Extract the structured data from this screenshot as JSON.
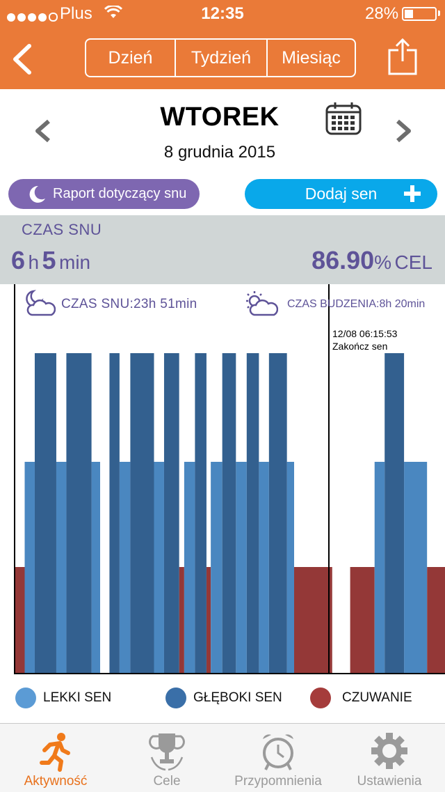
{
  "status_bar": {
    "carrier": "Plus",
    "time": "12:35",
    "battery": "28%",
    "battery_level": 0.28
  },
  "header": {
    "tabs": [
      {
        "label": "Dzień",
        "active": true
      },
      {
        "label": "Tydzień",
        "active": false
      },
      {
        "label": "Miesiąc",
        "active": false
      }
    ],
    "back_icon": "chevron-left-icon",
    "share_icon": "share-icon",
    "accent_color": "#EA7A38"
  },
  "date_nav": {
    "day": "WTOREK",
    "date": "8 grudnia 2015"
  },
  "actions": {
    "report_label": "Raport dotyczący snu",
    "add_sleep_label": "Dodaj sen"
  },
  "summary": {
    "label": "CZAS SNU",
    "hours": "6",
    "hours_unit": "h",
    "minutes": "5",
    "minutes_unit": "min",
    "percent": "86.90",
    "percent_suffix": "%",
    "goal": "CEL"
  },
  "chart_data": {
    "type": "bar",
    "sleep_time_label": "CZAS SNU:23h 51min",
    "wake_time_label": "CZAS BUDZENIA:8h 20min",
    "end_marker_time": "12/08 06:15:53",
    "end_marker_text": "Zakończ sen",
    "levels": {
      "CZUWANIE": 1,
      "LEKKI SEN": 2,
      "GŁĘBOKI SEN": 3
    },
    "colors": {
      "CZUWANIE": "#943837",
      "LEKKI SEN": "#4A87C0",
      "GŁĘBOKI SEN": "#33608F"
    },
    "segments": [
      {
        "state": "CZUWANIE",
        "start": 0,
        "end": 15
      },
      {
        "state": "LEKKI SEN",
        "start": 15,
        "end": 29
      },
      {
        "state": "GŁĘBOKI SEN",
        "start": 29,
        "end": 59
      },
      {
        "state": "LEKKI SEN",
        "start": 59,
        "end": 73
      },
      {
        "state": "GŁĘBOKI SEN",
        "start": 73,
        "end": 108
      },
      {
        "state": "LEKKI SEN",
        "start": 108,
        "end": 120
      },
      {
        "state": "GŁĘBOKI SEN",
        "start": 133,
        "end": 147
      },
      {
        "state": "LEKKI SEN",
        "start": 147,
        "end": 162
      },
      {
        "state": "GŁĘBOKI SEN",
        "start": 162,
        "end": 195
      },
      {
        "state": "LEKKI SEN",
        "start": 195,
        "end": 209
      },
      {
        "state": "GŁĘBOKI SEN",
        "start": 209,
        "end": 230
      },
      {
        "state": "CZUWANIE",
        "start": 230,
        "end": 237
      },
      {
        "state": "LEKKI SEN",
        "start": 237,
        "end": 252
      },
      {
        "state": "GŁĘBOKI SEN",
        "start": 252,
        "end": 268
      },
      {
        "state": "CZUWANIE",
        "start": 268,
        "end": 274
      },
      {
        "state": "LEKKI SEN",
        "start": 274,
        "end": 290
      },
      {
        "state": "GŁĘBOKI SEN",
        "start": 290,
        "end": 309
      },
      {
        "state": "LEKKI SEN",
        "start": 309,
        "end": 324
      },
      {
        "state": "GŁĘBOKI SEN",
        "start": 324,
        "end": 341
      },
      {
        "state": "LEKKI SEN",
        "start": 341,
        "end": 355
      },
      {
        "state": "GŁĘBOKI SEN",
        "start": 355,
        "end": 380
      },
      {
        "state": "LEKKI SEN",
        "start": 380,
        "end": 390
      },
      {
        "state": "CZUWANIE",
        "start": 390,
        "end": 443
      },
      {
        "state": "CZUWANIE",
        "start": 468,
        "end": 502
      },
      {
        "state": "LEKKI SEN",
        "start": 502,
        "end": 516
      },
      {
        "state": "GŁĘBOKI SEN",
        "start": 516,
        "end": 543
      },
      {
        "state": "LEKKI SEN",
        "start": 543,
        "end": 575
      },
      {
        "state": "CZUWANIE",
        "start": 575,
        "end": 600
      }
    ],
    "x_range": [
      0,
      600
    ],
    "legend": [
      "LEKKI SEN",
      "GŁĘBOKI SEN",
      "CZUWANIE"
    ]
  },
  "tab_bar": [
    {
      "label": "Aktywność",
      "icon": "running-icon",
      "active": true
    },
    {
      "label": "Cele",
      "icon": "trophy-icon",
      "active": false
    },
    {
      "label": "Przypomnienia",
      "icon": "alarm-clock-icon",
      "active": false
    },
    {
      "label": "Ustawienia",
      "icon": "gear-icon",
      "active": false
    }
  ]
}
